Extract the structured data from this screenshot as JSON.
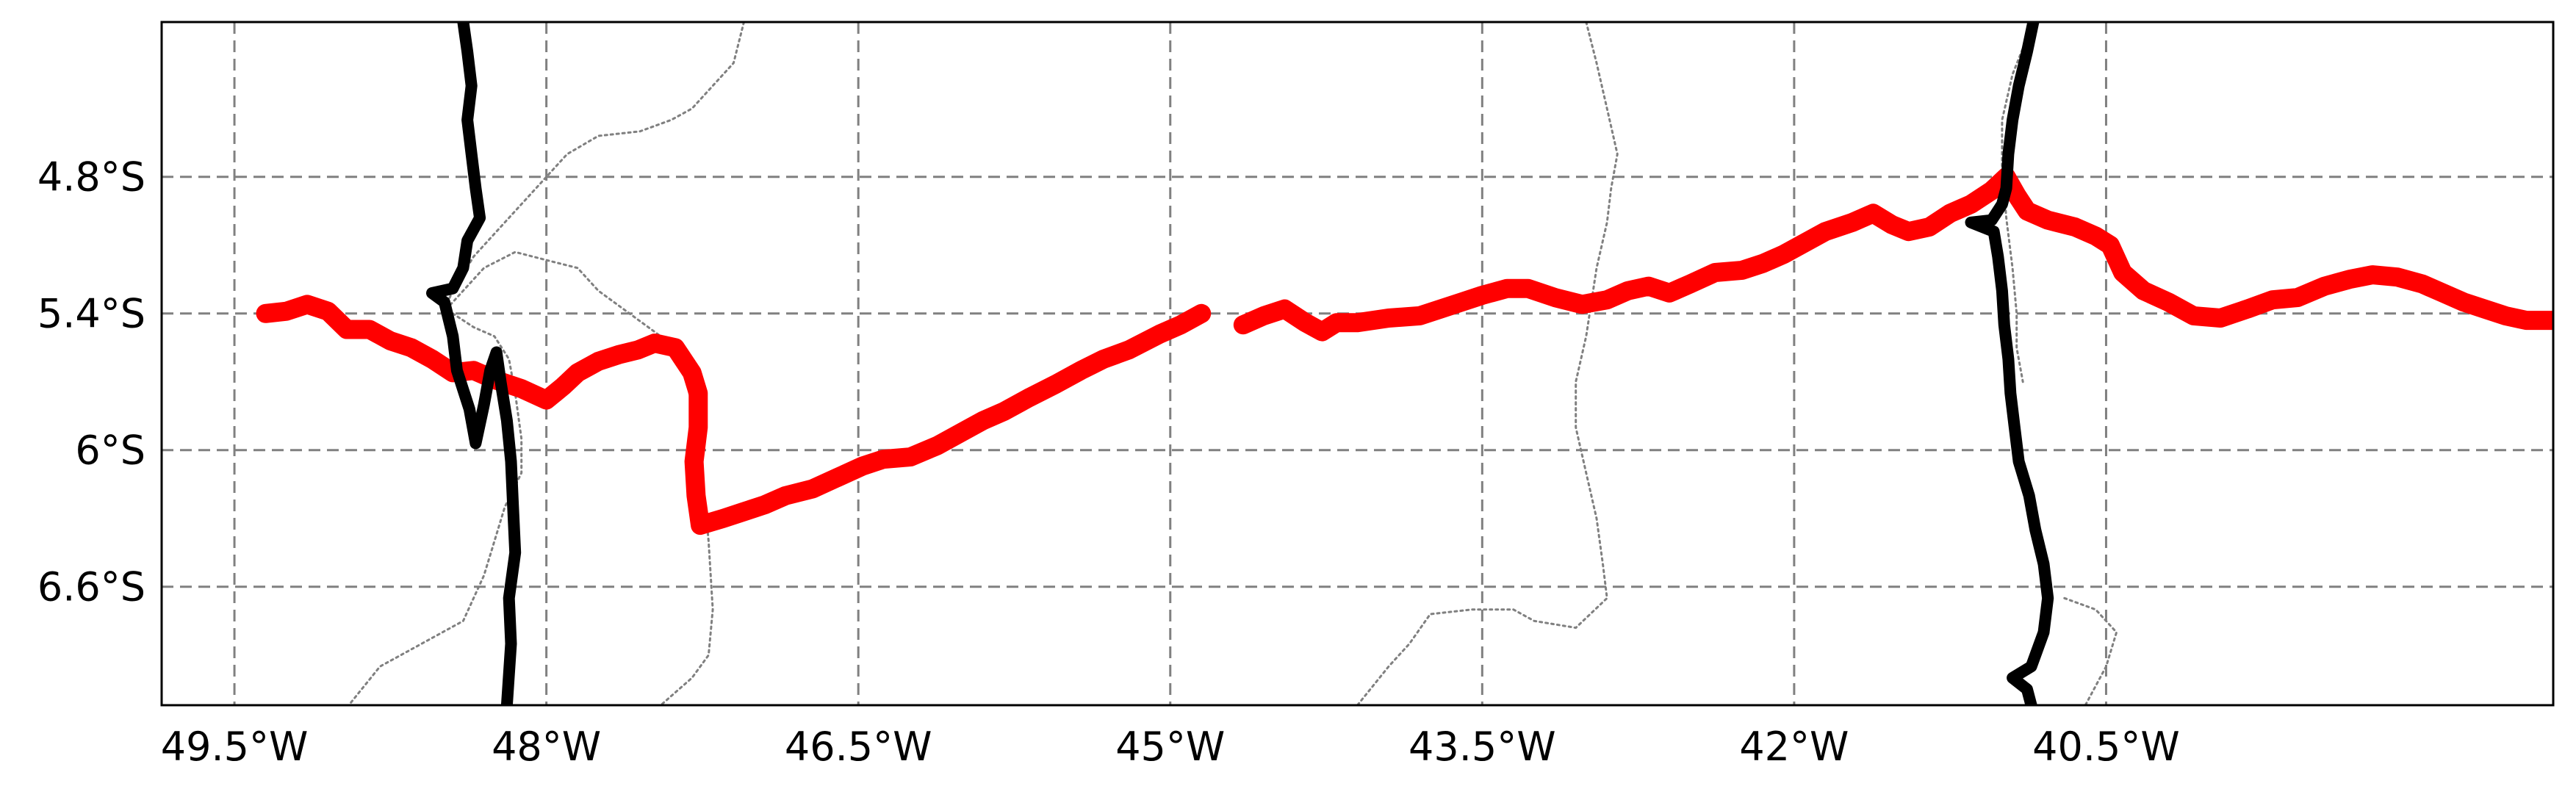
{
  "map": {
    "projection": "PlateCarree",
    "lon_range": [
      -49.85,
      -38.35
    ],
    "lat_range": [
      -7.12,
      -4.12
    ],
    "gridlines": {
      "style": "dashed",
      "color": "#808080",
      "lon_ticks": [
        -49.5,
        -48.0,
        -46.5,
        -45.0,
        -43.5,
        -42.0,
        -40.5
      ],
      "lat_ticks": [
        -4.8,
        -5.4,
        -6.0,
        -6.6
      ],
      "lon_labels": [
        "49.5°W",
        "48°W",
        "46.5°W",
        "45°W",
        "43.5°W",
        "42°W",
        "40.5°W"
      ],
      "lat_labels": [
        "4.8°S",
        "5.4°S",
        "6°S",
        "6.6°S"
      ]
    },
    "colors": {
      "track": "#ff0000",
      "black_lines": "#000000",
      "borders": "#808080",
      "frame": "#000000"
    },
    "layers": {
      "red_track": {
        "segments": [
          [
            [
              -49.35,
              -5.4
            ],
            [
              -49.25,
              -5.39
            ],
            [
              -49.15,
              -5.36
            ],
            [
              -49.05,
              -5.39
            ],
            [
              -48.96,
              -5.47
            ],
            [
              -48.85,
              -5.47
            ],
            [
              -48.75,
              -5.52
            ],
            [
              -48.65,
              -5.55
            ],
            [
              -48.55,
              -5.6
            ],
            [
              -48.45,
              -5.66
            ],
            [
              -48.35,
              -5.65
            ],
            [
              -48.25,
              -5.69
            ],
            [
              -48.12,
              -5.73
            ],
            [
              -48.0,
              -5.78
            ],
            [
              -47.92,
              -5.72
            ],
            [
              -47.85,
              -5.66
            ],
            [
              -47.75,
              -5.61
            ],
            [
              -47.65,
              -5.58
            ],
            [
              -47.56,
              -5.56
            ],
            [
              -47.48,
              -5.53
            ],
            [
              -47.38,
              -5.55
            ],
            [
              -47.3,
              -5.66
            ],
            [
              -47.27,
              -5.75
            ],
            [
              -47.27,
              -5.9
            ],
            [
              -47.29,
              -6.05
            ],
            [
              -47.28,
              -6.2
            ],
            [
              -47.26,
              -6.33
            ],
            [
              -47.15,
              -6.3
            ],
            [
              -47.05,
              -6.27
            ],
            [
              -46.95,
              -6.24
            ],
            [
              -46.85,
              -6.2
            ],
            [
              -46.72,
              -6.17
            ],
            [
              -46.6,
              -6.12
            ],
            [
              -46.48,
              -6.07
            ],
            [
              -46.38,
              -6.04
            ],
            [
              -46.25,
              -6.03
            ],
            [
              -46.12,
              -5.98
            ],
            [
              -46.0,
              -5.92
            ],
            [
              -45.9,
              -5.87
            ],
            [
              -45.8,
              -5.83
            ],
            [
              -45.68,
              -5.77
            ],
            [
              -45.55,
              -5.71
            ],
            [
              -45.43,
              -5.65
            ],
            [
              -45.32,
              -5.6
            ],
            [
              -45.2,
              -5.56
            ],
            [
              -45.05,
              -5.49
            ],
            [
              -44.95,
              -5.45
            ],
            [
              -44.85,
              -5.4
            ]
          ],
          [
            [
              -44.65,
              -5.45
            ],
            [
              -44.55,
              -5.41
            ],
            [
              -44.45,
              -5.38
            ],
            [
              -44.35,
              -5.44
            ],
            [
              -44.27,
              -5.48
            ],
            [
              -44.2,
              -5.44
            ],
            [
              -44.1,
              -5.44
            ],
            [
              -43.95,
              -5.42
            ],
            [
              -43.8,
              -5.41
            ],
            [
              -43.7,
              -5.38
            ],
            [
              -43.6,
              -5.35
            ],
            [
              -43.5,
              -5.32
            ],
            [
              -43.38,
              -5.29
            ],
            [
              -43.28,
              -5.29
            ],
            [
              -43.15,
              -5.33
            ],
            [
              -43.02,
              -5.36
            ],
            [
              -42.9,
              -5.34
            ],
            [
              -42.8,
              -5.3
            ],
            [
              -42.7,
              -5.28
            ],
            [
              -42.6,
              -5.31
            ],
            [
              -42.5,
              -5.27
            ],
            [
              -42.38,
              -5.22
            ],
            [
              -42.25,
              -5.21
            ],
            [
              -42.15,
              -5.18
            ],
            [
              -42.05,
              -5.14
            ],
            [
              -41.95,
              -5.09
            ],
            [
              -41.85,
              -5.04
            ],
            [
              -41.72,
              -5.0
            ],
            [
              -41.62,
              -4.96
            ],
            [
              -41.53,
              -5.01
            ],
            [
              -41.45,
              -5.04
            ],
            [
              -41.35,
              -5.02
            ],
            [
              -41.25,
              -4.96
            ],
            [
              -41.15,
              -4.92
            ],
            [
              -41.05,
              -4.86
            ],
            [
              -40.98,
              -4.8
            ],
            [
              -40.93,
              -4.88
            ],
            [
              -40.88,
              -4.95
            ],
            [
              -40.78,
              -4.99
            ],
            [
              -40.65,
              -5.02
            ],
            [
              -40.55,
              -5.06
            ],
            [
              -40.48,
              -5.1
            ],
            [
              -40.42,
              -5.22
            ],
            [
              -40.32,
              -5.3
            ],
            [
              -40.2,
              -5.35
            ],
            [
              -40.08,
              -5.41
            ],
            [
              -39.95,
              -5.42
            ],
            [
              -39.82,
              -5.38
            ],
            [
              -39.7,
              -5.34
            ],
            [
              -39.58,
              -5.33
            ],
            [
              -39.45,
              -5.28
            ],
            [
              -39.33,
              -5.25
            ],
            [
              -39.22,
              -5.23
            ],
            [
              -39.1,
              -5.24
            ],
            [
              -38.98,
              -5.27
            ],
            [
              -38.88,
              -5.31
            ],
            [
              -38.78,
              -5.35
            ],
            [
              -38.68,
              -5.38
            ],
            [
              -38.58,
              -5.41
            ],
            [
              -38.48,
              -5.43
            ],
            [
              -38.38,
              -5.43
            ],
            [
              -38.28,
              -5.43
            ],
            [
              -38.2,
              -5.42
            ],
            [
              -38.13,
              -5.41
            ]
          ]
        ]
      },
      "black_lines": {
        "segments": [
          [
            [
              -48.4,
              -4.12
            ],
            [
              -48.38,
              -4.25
            ],
            [
              -48.36,
              -4.4
            ],
            [
              -48.38,
              -4.55
            ],
            [
              -48.36,
              -4.7
            ],
            [
              -48.34,
              -4.85
            ],
            [
              -48.32,
              -4.98
            ],
            [
              -48.38,
              -5.08
            ],
            [
              -48.4,
              -5.2
            ],
            [
              -48.45,
              -5.29
            ],
            [
              -48.55,
              -5.31
            ],
            [
              -48.49,
              -5.35
            ],
            [
              -48.45,
              -5.5
            ],
            [
              -48.43,
              -5.65
            ],
            [
              -48.37,
              -5.82
            ],
            [
              -48.34,
              -5.97
            ],
            [
              -48.3,
              -5.8
            ],
            [
              -48.27,
              -5.65
            ],
            [
              -48.24,
              -5.57
            ],
            [
              -48.22,
              -5.7
            ],
            [
              -48.19,
              -5.87
            ],
            [
              -48.17,
              -6.05
            ],
            [
              -48.16,
              -6.25
            ],
            [
              -48.15,
              -6.45
            ],
            [
              -48.18,
              -6.65
            ],
            [
              -48.17,
              -6.85
            ],
            [
              -48.19,
              -7.12
            ]
          ],
          [
            [
              -40.85,
              -4.12
            ],
            [
              -40.88,
              -4.25
            ],
            [
              -40.92,
              -4.4
            ],
            [
              -40.95,
              -4.55
            ],
            [
              -40.97,
              -4.7
            ],
            [
              -40.98,
              -4.85
            ],
            [
              -41.0,
              -4.92
            ],
            [
              -41.05,
              -4.99
            ],
            [
              -41.15,
              -5.0
            ],
            [
              -41.04,
              -5.04
            ],
            [
              -41.02,
              -5.15
            ],
            [
              -41.0,
              -5.3
            ],
            [
              -40.99,
              -5.45
            ],
            [
              -40.97,
              -5.6
            ],
            [
              -40.96,
              -5.75
            ],
            [
              -40.94,
              -5.9
            ],
            [
              -40.92,
              -6.05
            ],
            [
              -40.87,
              -6.2
            ],
            [
              -40.84,
              -6.35
            ],
            [
              -40.8,
              -6.5
            ],
            [
              -40.78,
              -6.65
            ],
            [
              -40.8,
              -6.8
            ],
            [
              -40.86,
              -6.95
            ],
            [
              -40.95,
              -7.0
            ],
            [
              -40.88,
              -7.05
            ],
            [
              -40.86,
              -7.12
            ]
          ]
        ]
      },
      "borders": {
        "segments": [
          [
            [
              -47.05,
              -4.12
            ],
            [
              -47.1,
              -4.3
            ],
            [
              -47.2,
              -4.4
            ],
            [
              -47.3,
              -4.5
            ],
            [
              -47.4,
              -4.55
            ],
            [
              -47.55,
              -4.6
            ],
            [
              -47.75,
              -4.62
            ],
            [
              -47.9,
              -4.7
            ],
            [
              -48.05,
              -4.85
            ],
            [
              -48.2,
              -5.0
            ],
            [
              -48.35,
              -5.15
            ],
            [
              -48.45,
              -5.3
            ],
            [
              -48.5,
              -5.4
            ]
          ],
          [
            [
              -48.5,
              -5.4
            ],
            [
              -48.4,
              -5.3
            ],
            [
              -48.3,
              -5.2
            ],
            [
              -48.15,
              -5.13
            ],
            [
              -47.98,
              -5.17
            ],
            [
              -47.85,
              -5.2
            ],
            [
              -47.75,
              -5.3
            ],
            [
              -47.6,
              -5.4
            ],
            [
              -47.45,
              -5.5
            ],
            [
              -47.35,
              -5.6
            ],
            [
              -47.3,
              -5.8
            ],
            [
              -47.25,
              -6.1
            ],
            [
              -47.22,
              -6.4
            ],
            [
              -47.2,
              -6.7
            ],
            [
              -47.22,
              -6.9
            ],
            [
              -47.3,
              -7.0
            ],
            [
              -47.45,
              -7.12
            ]
          ],
          [
            [
              -48.45,
              -5.4
            ],
            [
              -48.35,
              -5.46
            ],
            [
              -48.25,
              -5.5
            ],
            [
              -48.18,
              -5.6
            ],
            [
              -48.15,
              -5.75
            ],
            [
              -48.12,
              -5.95
            ],
            [
              -48.12,
              -6.1
            ],
            [
              -48.2,
              -6.25
            ],
            [
              -48.25,
              -6.4
            ],
            [
              -48.3,
              -6.55
            ],
            [
              -48.4,
              -6.75
            ],
            [
              -48.6,
              -6.85
            ],
            [
              -48.8,
              -6.95
            ],
            [
              -48.95,
              -7.12
            ]
          ],
          [
            [
              -43.0,
              -4.12
            ],
            [
              -42.95,
              -4.3
            ],
            [
              -42.9,
              -4.5
            ],
            [
              -42.85,
              -4.7
            ],
            [
              -42.88,
              -4.85
            ],
            [
              -42.9,
              -5.0
            ],
            [
              -42.95,
              -5.2
            ],
            [
              -43.0,
              -5.5
            ],
            [
              -43.05,
              -5.7
            ],
            [
              -43.05,
              -5.9
            ],
            [
              -43.0,
              -6.1
            ],
            [
              -42.95,
              -6.3
            ],
            [
              -42.92,
              -6.5
            ],
            [
              -42.9,
              -6.65
            ],
            [
              -43.05,
              -6.78
            ],
            [
              -43.25,
              -6.75
            ],
            [
              -43.35,
              -6.7
            ],
            [
              -43.55,
              -6.7
            ],
            [
              -43.75,
              -6.72
            ],
            [
              -43.85,
              -6.85
            ],
            [
              -43.95,
              -6.95
            ],
            [
              -44.1,
              -7.12
            ]
          ],
          [
            [
              -40.85,
              -4.12
            ],
            [
              -40.95,
              -4.35
            ],
            [
              -41.0,
              -4.55
            ],
            [
              -41.0,
              -4.75
            ],
            [
              -40.98,
              -4.98
            ],
            [
              -40.95,
              -5.2
            ],
            [
              -40.93,
              -5.4
            ],
            [
              -40.93,
              -5.55
            ],
            [
              -40.9,
              -5.7
            ]
          ],
          [
            [
              -40.7,
              -6.65
            ],
            [
              -40.55,
              -6.7
            ],
            [
              -40.45,
              -6.8
            ],
            [
              -40.5,
              -6.95
            ],
            [
              -40.6,
              -7.12
            ]
          ]
        ]
      }
    }
  }
}
